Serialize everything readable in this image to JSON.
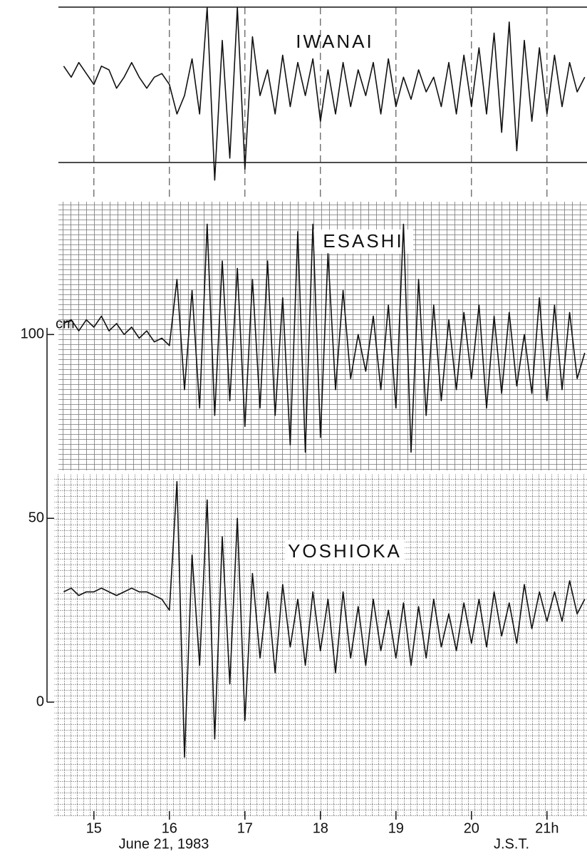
{
  "chart_data": {
    "type": "line",
    "y_label": "cm",
    "x_note": "June 21, 1983",
    "x_unit": "J.S.T.",
    "x": [
      14.6,
      14.7,
      14.8,
      14.9,
      15.0,
      15.1,
      15.2,
      15.3,
      15.4,
      15.5,
      15.6,
      15.7,
      15.8,
      15.9,
      16.0,
      16.1,
      16.2,
      16.3,
      16.4,
      16.5,
      16.6,
      16.7,
      16.8,
      16.9,
      17.0,
      17.1,
      17.2,
      17.3,
      17.4,
      17.5,
      17.6,
      17.7,
      17.8,
      17.9,
      18.0,
      18.1,
      18.2,
      18.3,
      18.4,
      18.5,
      18.6,
      18.7,
      18.8,
      18.9,
      19.0,
      19.1,
      19.2,
      19.3,
      19.4,
      19.5,
      19.6,
      19.7,
      19.8,
      19.9,
      20.0,
      20.1,
      20.2,
      20.3,
      20.4,
      20.5,
      20.6,
      20.7,
      20.8,
      20.9,
      21.0,
      21.1,
      21.2,
      21.3,
      21.4,
      21.5
    ],
    "series": [
      {
        "name": "IWANAI",
        "color": "#111111",
        "values": [
          173,
          170,
          174,
          171,
          168,
          173,
          172,
          167,
          170,
          174,
          170,
          167,
          170,
          171,
          168,
          160,
          165,
          175,
          160,
          189,
          142,
          180,
          148,
          189,
          145,
          181,
          165,
          172,
          160,
          176,
          162,
          174,
          165,
          175,
          158,
          172,
          160,
          174,
          162,
          172,
          165,
          174,
          160,
          175,
          162,
          170,
          164,
          172,
          166,
          170,
          162,
          174,
          160,
          176,
          162,
          178,
          160,
          182,
          155,
          185,
          150,
          180,
          158,
          178,
          160,
          176,
          162,
          174,
          166,
          170
        ]
      },
      {
        "name": "ESASHI",
        "color": "#111111",
        "values": [
          103,
          104,
          101,
          104,
          102,
          105,
          101,
          103,
          100,
          102,
          99,
          101,
          98,
          99,
          97,
          115,
          85,
          112,
          80,
          130,
          78,
          120,
          82,
          118,
          75,
          115,
          80,
          120,
          78,
          110,
          70,
          128,
          68,
          130,
          72,
          122,
          85,
          112,
          88,
          100,
          90,
          105,
          85,
          108,
          80,
          130,
          68,
          115,
          78,
          108,
          82,
          104,
          85,
          106,
          88,
          108,
          80,
          105,
          84,
          106,
          86,
          100,
          84,
          110,
          82,
          108,
          85,
          106,
          88,
          95
        ]
      },
      {
        "name": "YOSHIOKA",
        "color": "#111111",
        "values": [
          30,
          31,
          29,
          30,
          30,
          31,
          30,
          29,
          30,
          31,
          30,
          30,
          29,
          28,
          25,
          60,
          -15,
          40,
          10,
          55,
          -10,
          45,
          5,
          50,
          -5,
          35,
          12,
          30,
          8,
          32,
          15,
          28,
          10,
          30,
          14,
          28,
          8,
          30,
          12,
          26,
          10,
          28,
          14,
          25,
          12,
          27,
          10,
          26,
          12,
          28,
          15,
          24,
          14,
          27,
          16,
          28,
          15,
          30,
          18,
          27,
          16,
          32,
          20,
          30,
          22,
          30,
          22,
          33,
          24,
          28
        ]
      }
    ],
    "xlim": [
      14.53,
      21.53
    ],
    "xticks": [
      15,
      16,
      17,
      18,
      19,
      20,
      {
        "value": 21,
        "label": "21h"
      }
    ],
    "ylim": [
      -31,
      191
    ],
    "yticks": [
      0,
      50,
      100
    ]
  }
}
